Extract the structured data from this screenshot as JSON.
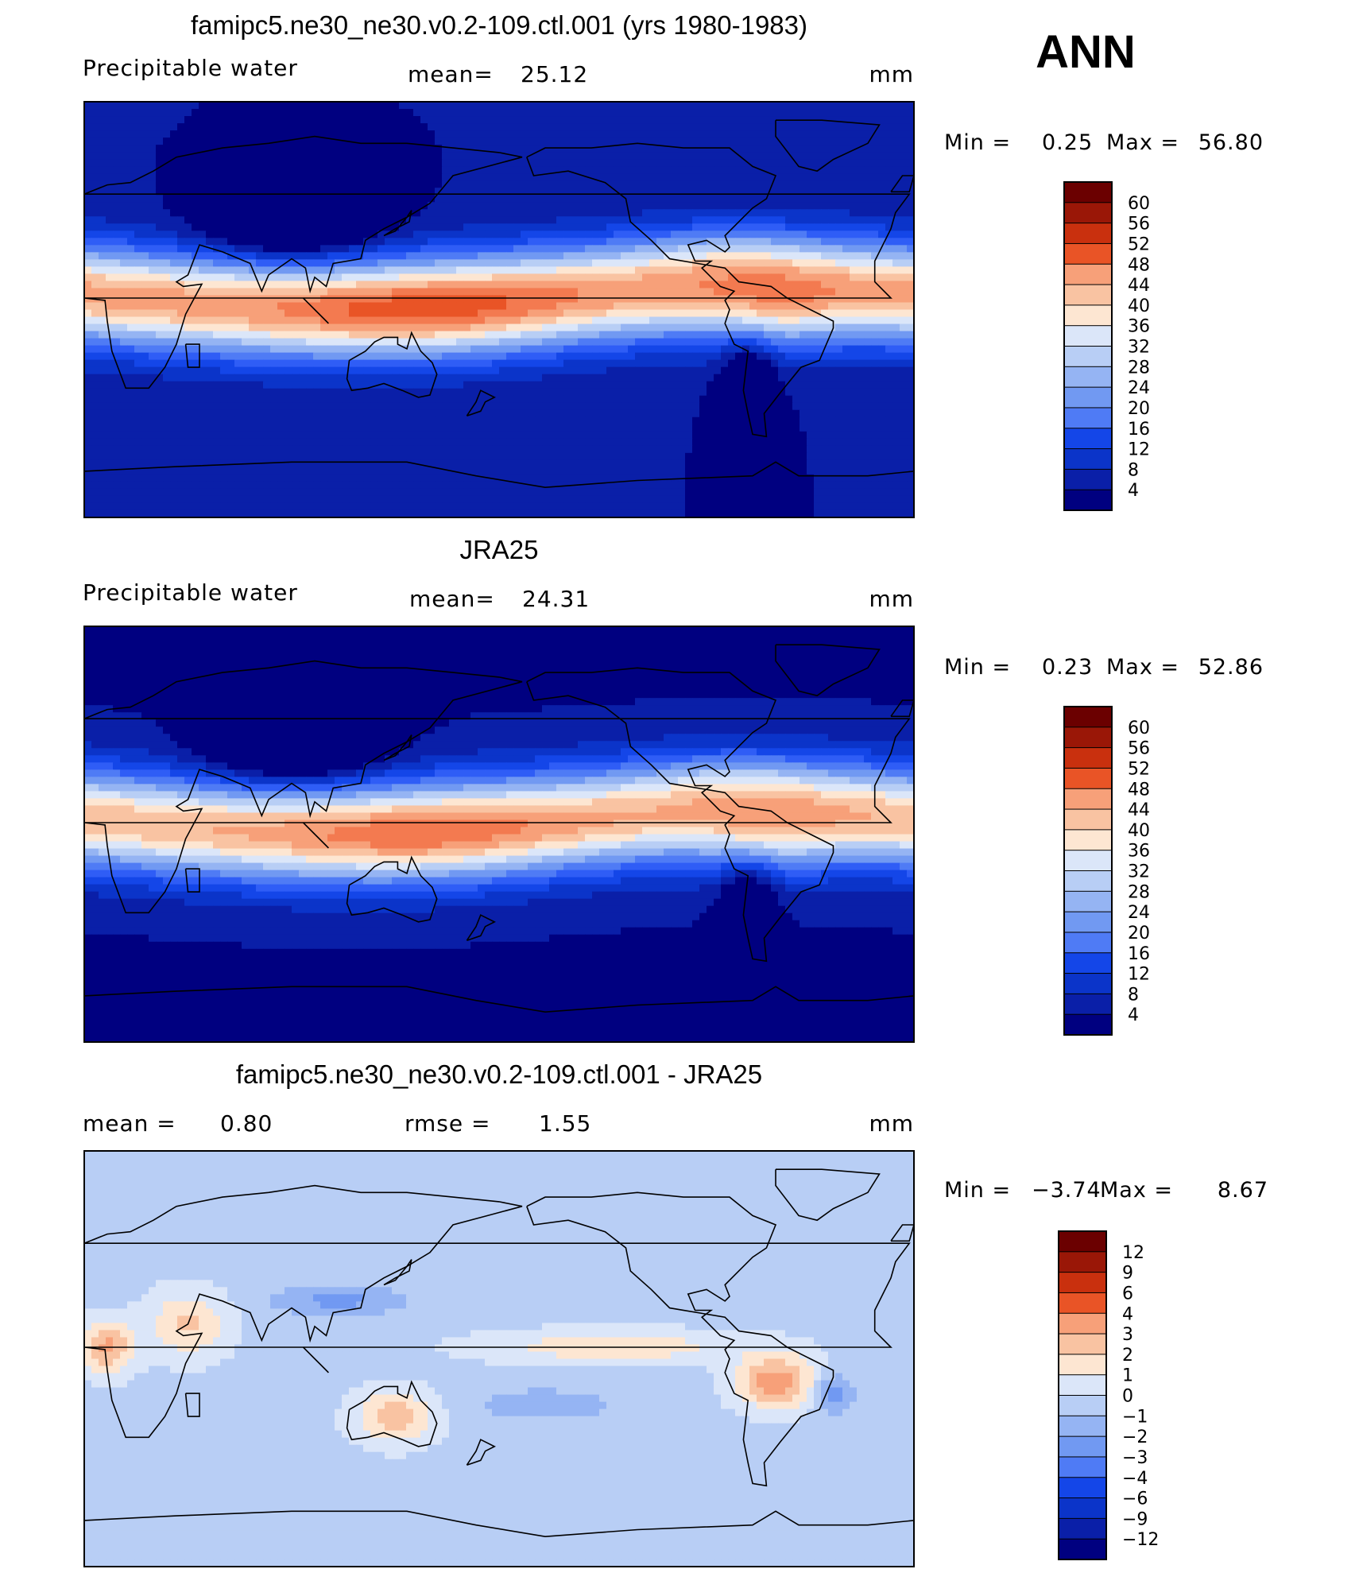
{
  "season": "ANN",
  "colors": {
    "abs_scale": [
      "#000080",
      "#0a1fa8",
      "#0b34c9",
      "#1446e8",
      "#2f5df6",
      "#4f7bf5",
      "#7199f2",
      "#95b4f3",
      "#b8cef5",
      "#dbe6f9",
      "#fde6d2",
      "#f9c3a2",
      "#f7a079",
      "#f37a50",
      "#e95426",
      "#c9300e",
      "#9a1707",
      "#6b0000"
    ],
    "diff_scale": [
      "#000080",
      "#0a1fa8",
      "#0b34c9",
      "#1446e8",
      "#2f5df6",
      "#4f7bf5",
      "#7199f2",
      "#95b4f3",
      "#b8cef5",
      "#dbe6f9",
      "#fde6d2",
      "#f9c3a2",
      "#f7a079",
      "#f37a50",
      "#e95426",
      "#c9300e",
      "#9a1707",
      "#6b0000"
    ],
    "coastline": "#000000"
  },
  "panels": [
    {
      "title": "famipc5.ne30_ne30.v0.2-109.ctl.001 (yrs 1980-1983)",
      "left_label": "Precipitable  water",
      "stat_label": "mean=",
      "stat_value": "25.12",
      "units": "mm",
      "min_label": "Min  =",
      "min_value": "0.25",
      "max_label": "Max  =",
      "max_value": "56.80",
      "colorbar_ticks": [
        "60",
        "56",
        "52",
        "48",
        "44",
        "40",
        "36",
        "32",
        "28",
        "24",
        "20",
        "16",
        "12",
        "8",
        "4"
      ],
      "field": "model"
    },
    {
      "title": "JRA25",
      "left_label": "Precipitable  water",
      "stat_label": "mean=",
      "stat_value": "24.31",
      "units": "mm",
      "min_label": "Min  =",
      "min_value": "0.23",
      "max_label": "Max  =",
      "max_value": "52.86",
      "colorbar_ticks": [
        "60",
        "56",
        "52",
        "48",
        "44",
        "40",
        "36",
        "32",
        "28",
        "24",
        "20",
        "16",
        "12",
        "8",
        "4"
      ],
      "field": "obs"
    },
    {
      "title": "famipc5.ne30_ne30.v0.2-109.ctl.001 - JRA25",
      "left_label": "mean  =",
      "left_value": "0.80",
      "stat_label": "rmse  =",
      "stat_value": "1.55",
      "units": "mm",
      "min_label": "Min  =",
      "min_value": "−3.74",
      "max_label": "Max  =",
      "max_value": "8.67",
      "colorbar_ticks": [
        "12",
        "9",
        "6",
        "4",
        "3",
        "2",
        "1",
        "0",
        "−1",
        "−2",
        "−3",
        "−4",
        "−6",
        "−9",
        "−12"
      ],
      "field": "diff"
    }
  ]
}
